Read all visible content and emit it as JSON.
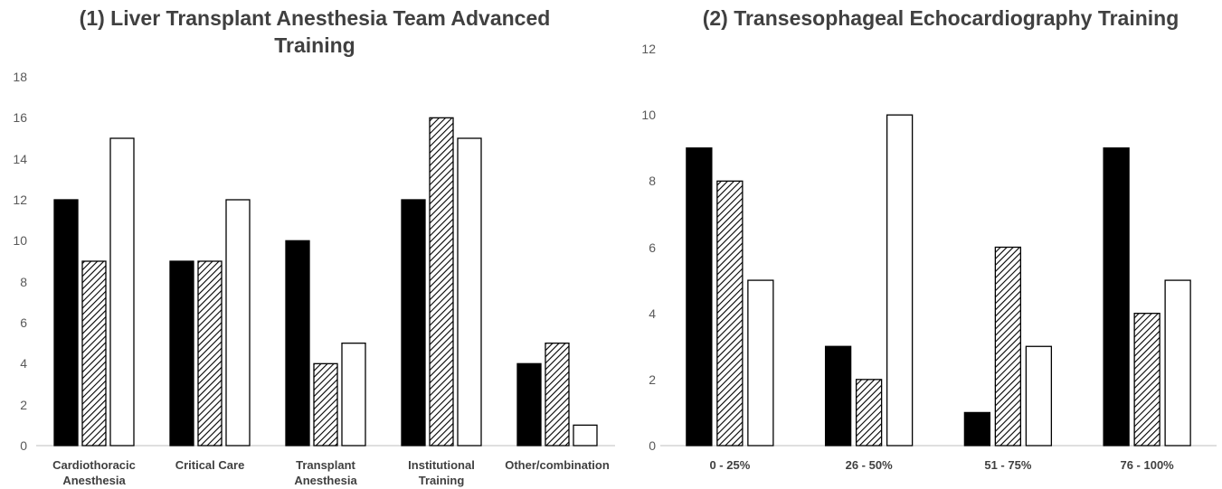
{
  "chart_data": [
    {
      "type": "bar",
      "title": "(1) Liver Transplant Anesthesia Team Advanced Training",
      "categories": [
        "Cardiothoracic Anesthesia",
        "Critical Care",
        "Transplant Anesthesia",
        "Institutional Training",
        "Other/combination"
      ],
      "series": [
        {
          "color": "#000000",
          "values": [
            12,
            9,
            10,
            12,
            4
          ]
        },
        {
          "color": "#000000",
          "pattern": "hatch",
          "values": [
            9,
            9,
            4,
            16,
            5
          ]
        },
        {
          "color": "#ffffff",
          "values": [
            15,
            12,
            5,
            15,
            1
          ]
        }
      ],
      "ylim": [
        0,
        18
      ],
      "yticks": [
        0,
        2,
        4,
        6,
        8,
        10,
        12,
        14,
        16,
        18
      ],
      "grid": false
    },
    {
      "type": "bar",
      "title": "(2) Transesophageal Echocardiography Training",
      "categories": [
        "0 - 25%",
        "26 - 50%",
        "51 - 75%",
        "76 - 100%"
      ],
      "series": [
        {
          "color": "#000000",
          "values": [
            9,
            3,
            1,
            9
          ]
        },
        {
          "color": "#000000",
          "pattern": "hatch",
          "values": [
            8,
            2,
            6,
            4
          ]
        },
        {
          "color": "#ffffff",
          "values": [
            5,
            10,
            3,
            5
          ]
        }
      ],
      "ylim": [
        0,
        12
      ],
      "yticks": [
        0,
        2,
        4,
        6,
        8,
        10,
        12
      ],
      "grid": false
    }
  ]
}
